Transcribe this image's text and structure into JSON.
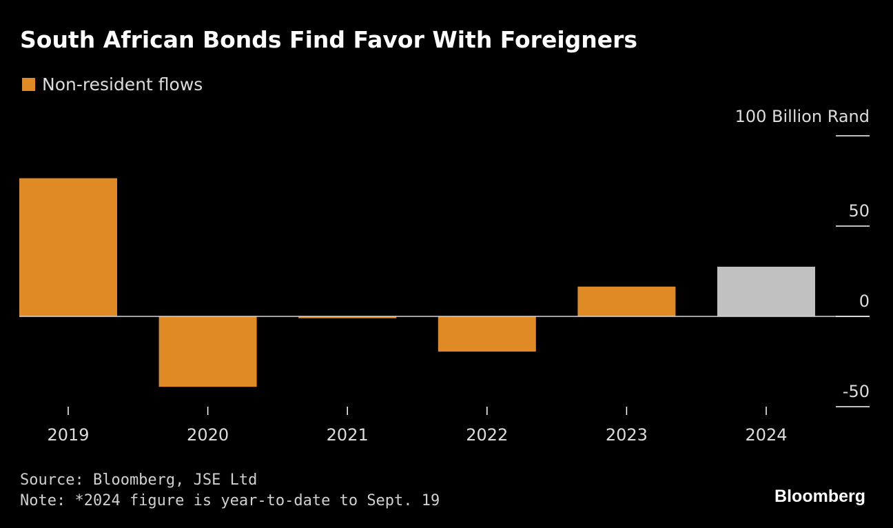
{
  "chart_data": {
    "type": "bar",
    "title": "South African Bonds Find Favor With Foreigners",
    "legend": [
      {
        "name": "Non-resident flows",
        "color": "#e08a26"
      }
    ],
    "categories": [
      "2019",
      "2020",
      "2021",
      "2022",
      "2023",
      "2024"
    ],
    "values": [
      76.5,
      -39,
      -1,
      -19.5,
      16.5,
      27.5
    ],
    "bar_colors": [
      "#e08a26",
      "#e08a26",
      "#e08a26",
      "#e08a26",
      "#e08a26",
      "#c1c1c1"
    ],
    "y_unit_label": "100 Billion Rand",
    "y_ticks": [
      100,
      50,
      0,
      -50
    ],
    "y_tick_labels": [
      "",
      "50",
      "0",
      "-50"
    ],
    "ylim": [
      -50,
      100
    ],
    "axis_position": "right"
  },
  "source": "Source: Bloomberg, JSE Ltd",
  "note": "Note: *2024 figure is year-to-date to Sept. 19",
  "brand": "Bloomberg",
  "colors": {
    "background": "#000000",
    "accent": "#e08a26",
    "highlight": "#c1c1c1"
  }
}
